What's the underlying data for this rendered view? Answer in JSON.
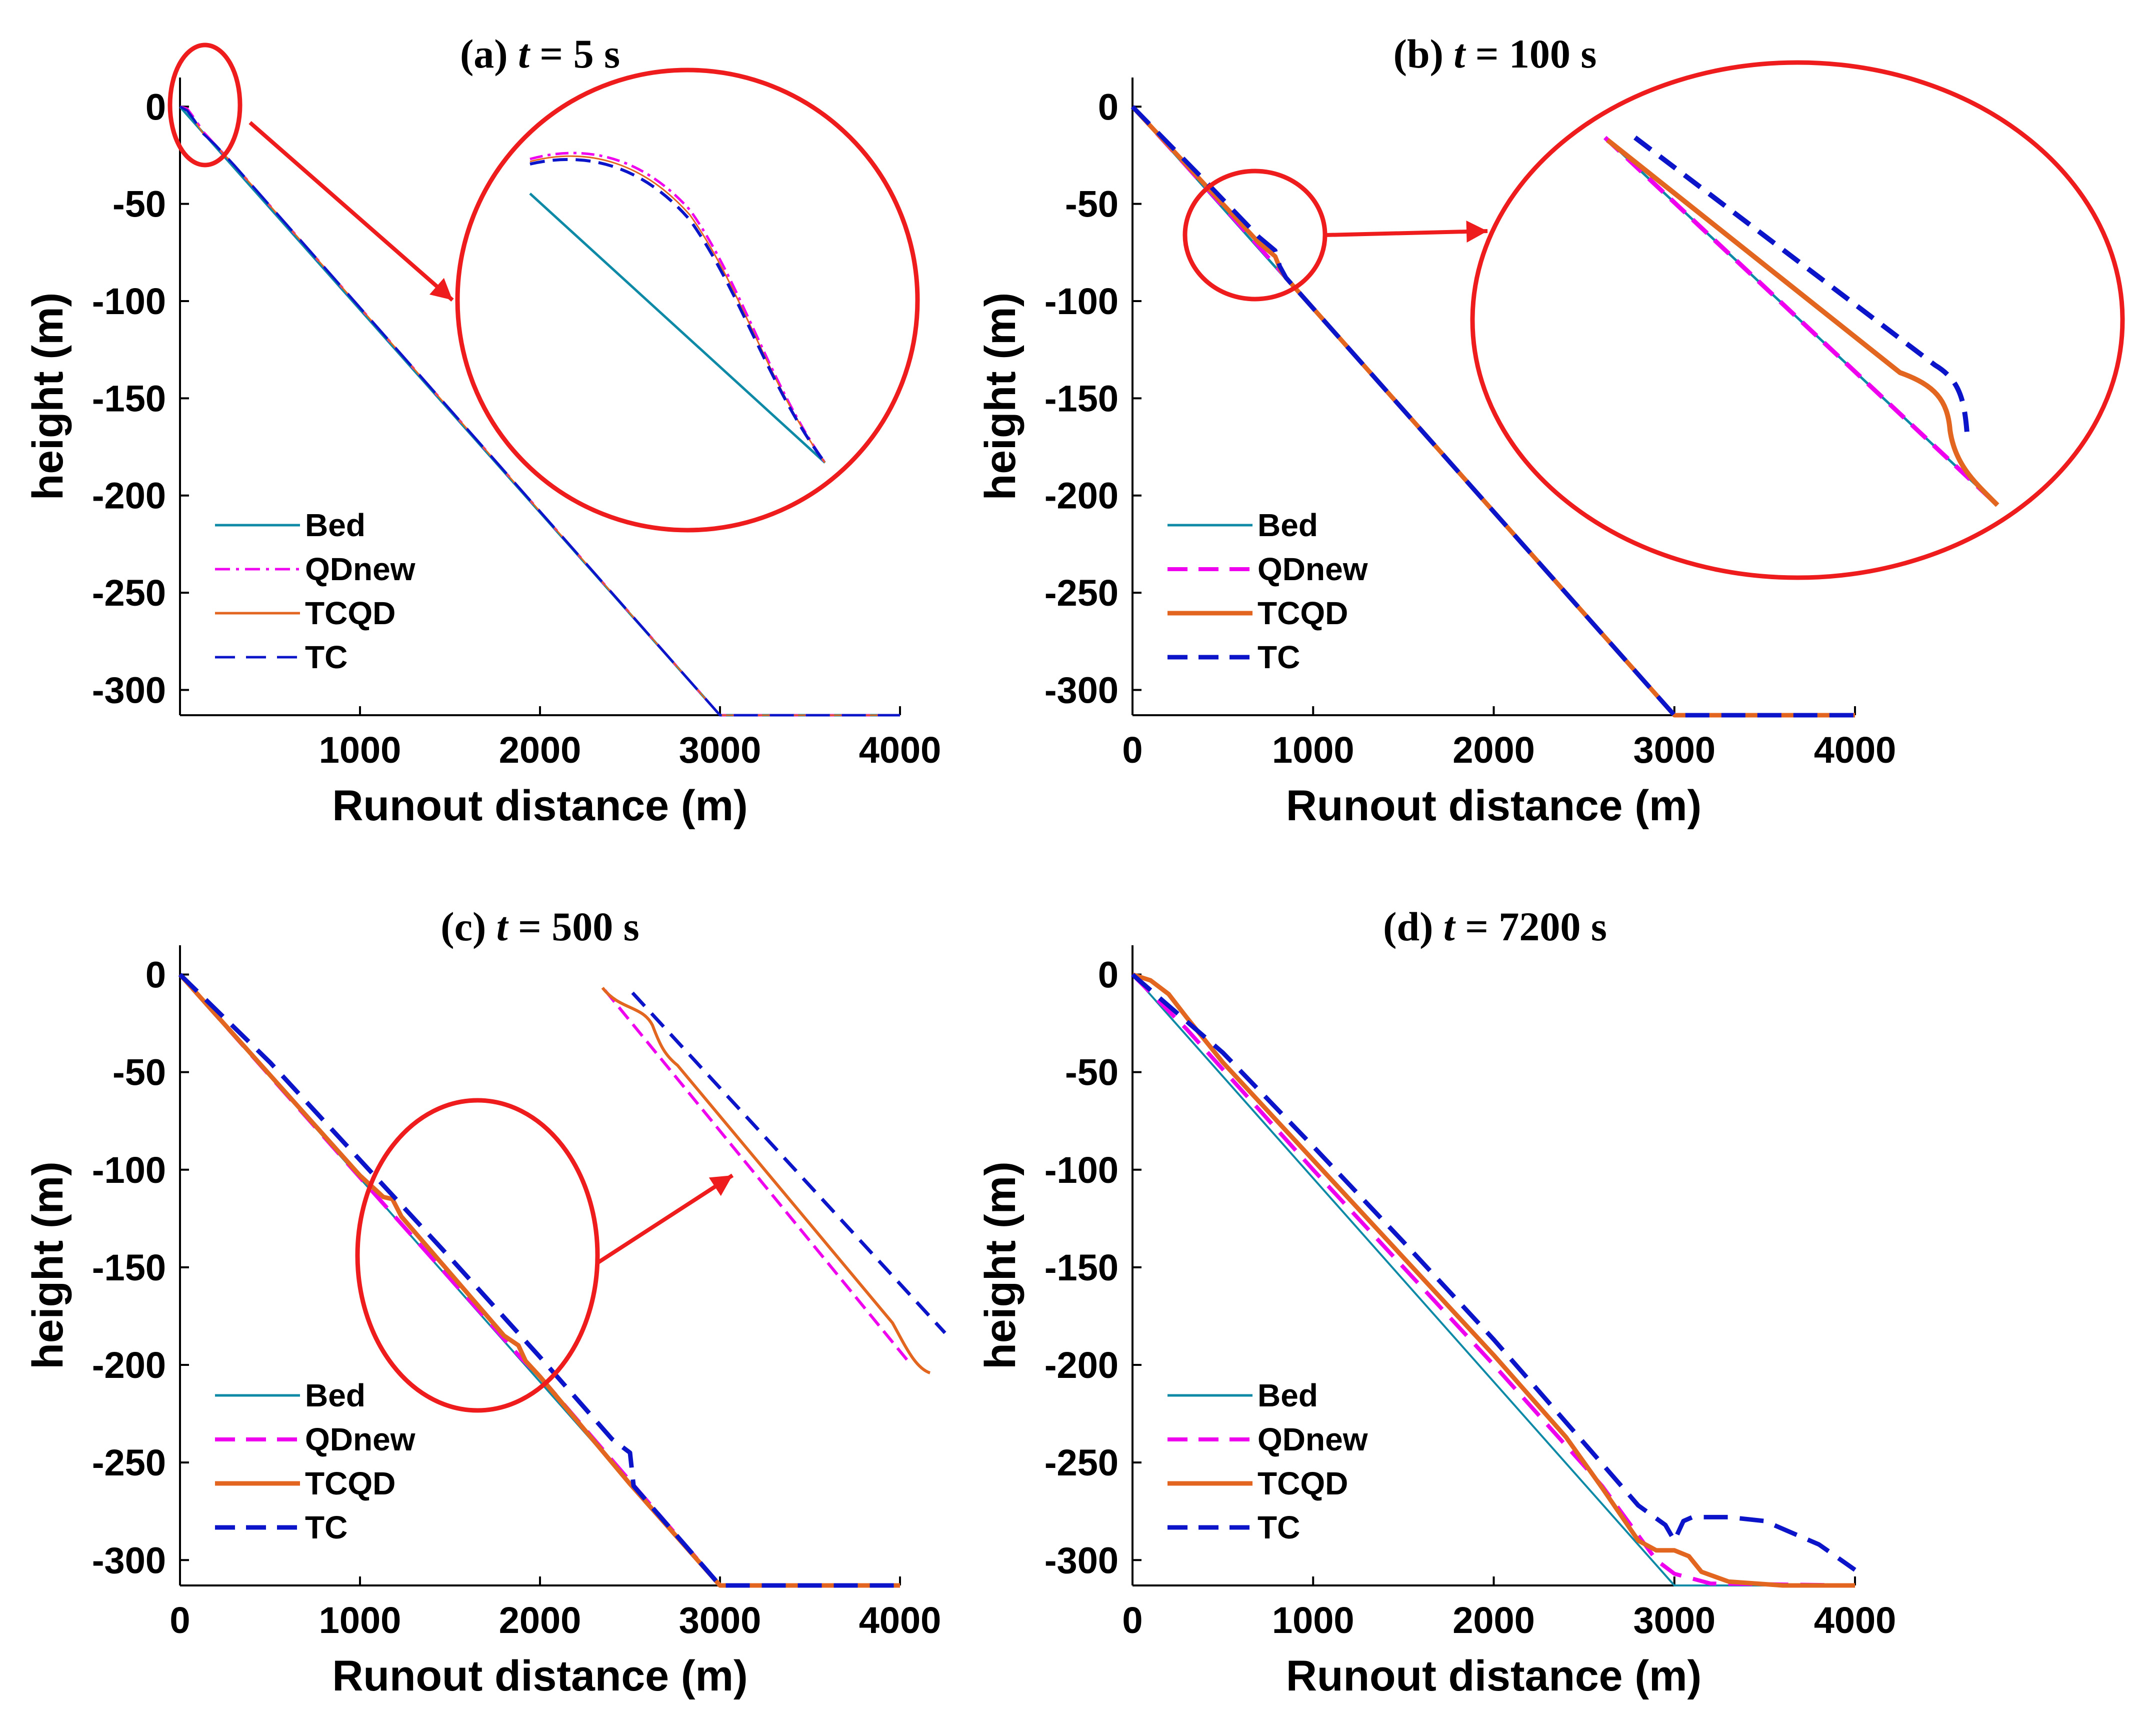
{
  "chart_data": [
    {
      "type": "line",
      "panel_label": "(a)",
      "title_var": "t",
      "title_eq": " = 5 s",
      "xlabel": "Runout distance (m)",
      "ylabel": "height (m)",
      "xlim": [
        0,
        4000
      ],
      "ylim": [
        -313,
        15
      ],
      "xticks": [
        1000,
        2000,
        3000,
        4000
      ],
      "yticks": [
        0,
        -50,
        -100,
        -150,
        -200,
        -250,
        -300
      ],
      "grid": false,
      "legend_position": "bottom-left",
      "has_zoom_inset": true,
      "series": [
        {
          "name": "Bed",
          "color": "#0e8aa6",
          "dash": "solid",
          "width": 5,
          "points": [
            [
              0,
              0
            ],
            [
              3000,
              -313
            ],
            [
              4000,
              -313
            ]
          ]
        },
        {
          "name": "QDnew",
          "color": "#ee00ee",
          "dash": "dashdot",
          "width": 5,
          "points": [
            [
              0,
              0
            ],
            [
              40,
              -1
            ],
            [
              80,
              -6
            ],
            [
              130,
              -13
            ],
            [
              200,
              -20
            ],
            [
              300,
              -30
            ],
            [
              3000,
              -313
            ],
            [
              4000,
              -313
            ]
          ]
        },
        {
          "name": "TCQD",
          "color": "#e2661f",
          "dash": "solid",
          "width": 3,
          "points": [
            [
              0,
              0
            ],
            [
              40,
              -1.5
            ],
            [
              80,
              -7
            ],
            [
              130,
              -14
            ],
            [
              200,
              -20
            ],
            [
              300,
              -30
            ],
            [
              3000,
              -313
            ],
            [
              4000,
              -313
            ]
          ]
        },
        {
          "name": "TC",
          "color": "#0b14c8",
          "dash": "dashed",
          "width": 5,
          "points": [
            [
              0,
              0
            ],
            [
              40,
              -2
            ],
            [
              80,
              -7
            ],
            [
              130,
              -14
            ],
            [
              200,
              -20
            ],
            [
              300,
              -30
            ],
            [
              3000,
              -313
            ],
            [
              4000,
              -313
            ]
          ]
        }
      ]
    },
    {
      "type": "line",
      "panel_label": "(b)",
      "title_var": "t",
      "title_eq": " = 100 s",
      "xlabel": "Runout distance (m)",
      "ylabel": "height (m)",
      "xlim": [
        0,
        4000
      ],
      "ylim": [
        -313,
        15
      ],
      "xticks": [
        0,
        1000,
        2000,
        3000,
        4000
      ],
      "yticks": [
        0,
        -50,
        -100,
        -150,
        -200,
        -250,
        -300
      ],
      "grid": false,
      "legend_position": "bottom-left",
      "has_zoom_inset": true,
      "series": [
        {
          "name": "Bed",
          "color": "#0e8aa6",
          "dash": "solid",
          "width": 5,
          "points": [
            [
              0,
              0
            ],
            [
              3000,
              -313
            ],
            [
              4000,
              -313
            ]
          ]
        },
        {
          "name": "QDnew",
          "color": "#ee00ee",
          "dash": "dashed",
          "width": 8,
          "points": [
            [
              0,
              0
            ],
            [
              400,
              -41
            ],
            [
              700,
              -72
            ],
            [
              850,
              -88
            ],
            [
              3000,
              -313
            ],
            [
              4000,
              -313
            ]
          ]
        },
        {
          "name": "TCQD",
          "color": "#e2661f",
          "dash": "solid",
          "width": 9,
          "points": [
            [
              0,
              0
            ],
            [
              400,
              -40
            ],
            [
              700,
              -70
            ],
            [
              790,
              -77
            ],
            [
              820,
              -84
            ],
            [
              850,
              -88
            ],
            [
              3000,
              -313
            ],
            [
              4000,
              -313
            ]
          ]
        },
        {
          "name": "TC",
          "color": "#0b14c8",
          "dash": "dashed",
          "width": 9,
          "points": [
            [
              0,
              0
            ],
            [
              400,
              -38
            ],
            [
              700,
              -67
            ],
            [
              790,
              -74
            ],
            [
              815,
              -82
            ],
            [
              850,
              -88
            ],
            [
              3000,
              -313
            ],
            [
              4000,
              -313
            ]
          ]
        }
      ]
    },
    {
      "type": "line",
      "panel_label": "(c)",
      "title_var": "t",
      "title_eq": " = 500 s",
      "xlabel": "Runout distance (m)",
      "ylabel": "height (m)",
      "xlim": [
        0,
        4000
      ],
      "ylim": [
        -313,
        15
      ],
      "xticks": [
        0,
        1000,
        2000,
        3000,
        4000
      ],
      "yticks": [
        0,
        -50,
        -100,
        -150,
        -200,
        -250,
        -300
      ],
      "grid": false,
      "legend_position": "bottom-left",
      "has_zoom_inset": true,
      "series": [
        {
          "name": "Bed",
          "color": "#0e8aa6",
          "dash": "solid",
          "width": 4,
          "points": [
            [
              0,
              0
            ],
            [
              3000,
              -313
            ],
            [
              4000,
              -313
            ]
          ]
        },
        {
          "name": "QDnew",
          "color": "#ee00ee",
          "dash": "dashed",
          "width": 8,
          "points": [
            [
              0,
              0
            ],
            [
              1000,
              -104
            ],
            [
              1900,
              -197
            ],
            [
              2000,
              -206
            ],
            [
              3000,
              -313
            ],
            [
              4000,
              -313
            ]
          ]
        },
        {
          "name": "TCQD",
          "color": "#e2661f",
          "dash": "solid",
          "width": 9,
          "points": [
            [
              0,
              0
            ],
            [
              1000,
              -103
            ],
            [
              1130,
              -114
            ],
            [
              1180,
              -115
            ],
            [
              1230,
              -124
            ],
            [
              1800,
              -185
            ],
            [
              1880,
              -190
            ],
            [
              1920,
              -198
            ],
            [
              2000,
              -206
            ],
            [
              2500,
              -261
            ],
            [
              3000,
              -313
            ],
            [
              4000,
              -313
            ]
          ]
        },
        {
          "name": "TC",
          "color": "#0b14c8",
          "dash": "dashed",
          "width": 9,
          "points": [
            [
              0,
              0
            ],
            [
              500,
              -45
            ],
            [
              1000,
              -95
            ],
            [
              1500,
              -145
            ],
            [
              2000,
              -196
            ],
            [
              2400,
              -238
            ],
            [
              2500,
              -245
            ],
            [
              2520,
              -262
            ],
            [
              3000,
              -313
            ],
            [
              4000,
              -313
            ]
          ]
        }
      ]
    },
    {
      "type": "line",
      "panel_label": "(d)",
      "title_var": "t",
      "title_eq": " = 7200 s",
      "xlabel": "Runout distance (m)",
      "ylabel": "height (m)",
      "xlim": [
        0,
        4000
      ],
      "ylim": [
        -313,
        15
      ],
      "xticks": [
        0,
        1000,
        2000,
        3000,
        4000
      ],
      "yticks": [
        0,
        -50,
        -100,
        -150,
        -200,
        -250,
        -300
      ],
      "grid": false,
      "legend_position": "bottom-left",
      "has_zoom_inset": false,
      "series": [
        {
          "name": "Bed",
          "color": "#0e8aa6",
          "dash": "solid",
          "width": 4,
          "points": [
            [
              0,
              0
            ],
            [
              3000,
              -313
            ],
            [
              4000,
              -313
            ]
          ]
        },
        {
          "name": "QDnew",
          "color": "#ee00ee",
          "dash": "dashed",
          "width": 8,
          "points": [
            [
              0,
              0
            ],
            [
              300,
              -28
            ],
            [
              1000,
              -100
            ],
            [
              2000,
              -200
            ],
            [
              2600,
              -262
            ],
            [
              2900,
              -300
            ],
            [
              3000,
              -307
            ],
            [
              3200,
              -312
            ],
            [
              4000,
              -313
            ]
          ]
        },
        {
          "name": "TCQD",
          "color": "#e2661f",
          "dash": "solid",
          "width": 9,
          "points": [
            [
              0,
              0
            ],
            [
              100,
              -3
            ],
            [
              200,
              -10
            ],
            [
              300,
              -22
            ],
            [
              500,
              -45
            ],
            [
              1000,
              -95
            ],
            [
              1500,
              -145
            ],
            [
              2000,
              -195
            ],
            [
              2400,
              -237
            ],
            [
              2600,
              -263
            ],
            [
              2800,
              -290
            ],
            [
              2900,
              -295
            ],
            [
              3000,
              -295
            ],
            [
              3080,
              -298
            ],
            [
              3150,
              -306
            ],
            [
              3300,
              -311
            ],
            [
              3600,
              -313
            ],
            [
              4000,
              -313
            ]
          ]
        },
        {
          "name": "TC",
          "color": "#0b14c8",
          "dash": "dashed",
          "width": 9,
          "points": [
            [
              0,
              0
            ],
            [
              500,
              -40
            ],
            [
              1000,
              -88
            ],
            [
              1500,
              -137
            ],
            [
              2000,
              -187
            ],
            [
              2500,
              -240
            ],
            [
              2800,
              -272
            ],
            [
              2950,
              -282
            ],
            [
              3000,
              -290
            ],
            [
              3050,
              -280
            ],
            [
              3100,
              -278
            ],
            [
              3300,
              -278
            ],
            [
              3500,
              -280
            ],
            [
              3800,
              -292
            ],
            [
              4000,
              -305
            ]
          ]
        }
      ]
    }
  ]
}
